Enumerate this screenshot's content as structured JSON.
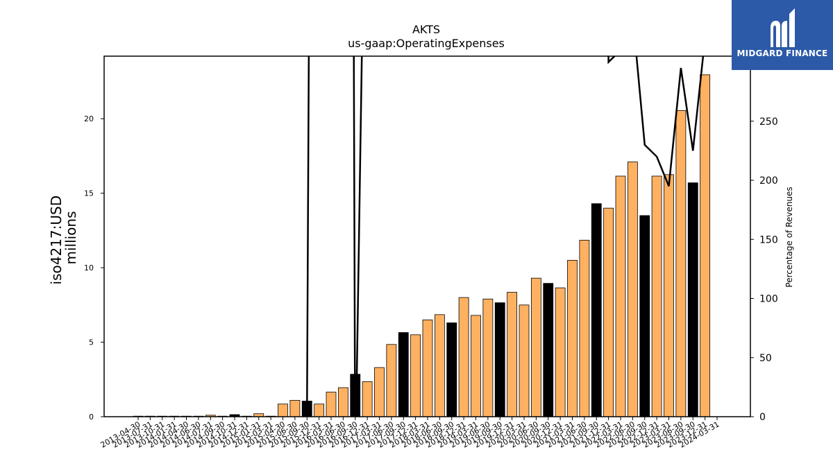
{
  "logo": {
    "text": "MIDGARD FINANCE"
  },
  "chart_data": {
    "type": "bar",
    "title": "AKTS",
    "subtitle": "us-gaap:OperatingExpenses",
    "ylabel": "iso4217:USD\nmillions",
    "y2label": "Percentage of Revenues",
    "ylim": [
      0,
      24.2
    ],
    "y2lim": [
      0,
      305
    ],
    "yticks": [
      0,
      5,
      10,
      15,
      20
    ],
    "y2ticks": [
      0,
      50,
      100,
      150,
      200,
      250
    ],
    "colors": {
      "quarter": "#ffb162",
      "annual": "#000000",
      "edge": "#000000",
      "line": "#000000"
    },
    "categories": [
      "2013-04-30",
      "2013-07-31",
      "2013-10-31",
      "2014-01-31",
      "2014-04-30",
      "2014-06-30",
      "2014-07-31",
      "2014-09-30",
      "2014-10-31",
      "2014-12-31",
      "2015-01-31",
      "2015-03-31",
      "2015-04-30",
      "2015-06-30",
      "2015-09-30",
      "2015-12-31",
      "2016-03-31",
      "2016-06-30",
      "2016-09-30",
      "2016-12-31",
      "2017-03-31",
      "2017-06-30",
      "2017-09-30",
      "2017-12-31",
      "2018-03-31",
      "2018-06-30",
      "2018-09-30",
      "2018-12-31",
      "2019-03-31",
      "2019-06-30",
      "2019-09-30",
      "2019-12-31",
      "2020-03-31",
      "2020-06-30",
      "2020-09-30",
      "2020-12-31",
      "2021-03-31",
      "2021-06-30",
      "2021-09-30",
      "2021-12-31",
      "2022-03-31",
      "2022-06-30",
      "2022-09-30",
      "2022-12-31",
      "2023-03-31",
      "2023-06-30",
      "2023-09-30",
      "2023-12-31",
      "2024-03-31"
    ],
    "values": [
      0.03,
      0.03,
      0.03,
      0.03,
      0.03,
      0.03,
      0.1,
      0.03,
      0.14,
      0.03,
      0.2,
      0.03,
      0.85,
      1.1,
      1.05,
      0.85,
      1.65,
      1.95,
      2.85,
      2.35,
      3.3,
      4.85,
      5.65,
      5.5,
      6.5,
      6.85,
      6.3,
      8.0,
      6.8,
      7.9,
      7.65,
      8.35,
      7.5,
      9.3,
      8.95,
      8.65,
      10.5,
      11.85,
      14.3,
      14.0,
      16.15,
      17.1,
      13.5,
      16.15,
      16.25,
      20.55,
      15.7,
      22.95,
      null
    ],
    "annual": [
      false,
      false,
      false,
      false,
      false,
      false,
      false,
      false,
      true,
      false,
      false,
      false,
      false,
      false,
      true,
      false,
      false,
      false,
      true,
      false,
      false,
      false,
      true,
      false,
      false,
      false,
      true,
      false,
      false,
      false,
      true,
      false,
      false,
      false,
      true,
      false,
      false,
      false,
      true,
      false,
      false,
      false,
      true,
      false,
      false,
      false,
      true,
      false,
      false
    ],
    "pct_of_revenues": [
      null,
      null,
      null,
      null,
      null,
      null,
      null,
      null,
      null,
      null,
      null,
      null,
      null,
      null,
      5,
      2000,
      3000,
      3000,
      -50,
      600,
      700,
      800,
      900,
      1000,
      1000,
      1000,
      1000,
      1000,
      1000,
      1000,
      1000,
      1000,
      1000,
      1000,
      1000,
      1000,
      1000,
      1000,
      1000,
      300,
      310,
      340,
      230,
      220,
      195,
      295,
      225,
      320,
      null
    ]
  }
}
